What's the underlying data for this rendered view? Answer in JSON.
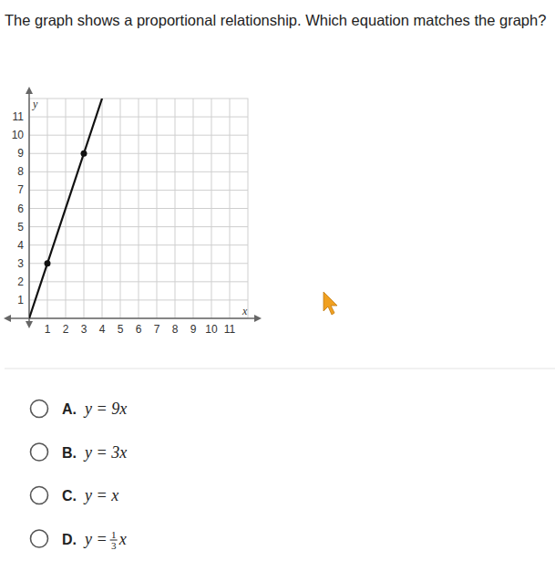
{
  "question": "The graph shows a proportional relationship. Which equation matches the graph?",
  "chart_data": {
    "type": "line",
    "x_label": "x",
    "y_label": "y",
    "xlim": [
      0,
      12
    ],
    "ylim": [
      0,
      12
    ],
    "xticks": [
      1,
      2,
      3,
      4,
      5,
      6,
      7,
      8,
      9,
      10,
      11
    ],
    "yticks": [
      1,
      2,
      3,
      4,
      5,
      6,
      7,
      8,
      9,
      10,
      11
    ],
    "grid": true,
    "series": [
      {
        "type": "line",
        "color": "#111111",
        "line_style": "solid",
        "x": [
          0,
          4
        ],
        "values": [
          0,
          12
        ]
      },
      {
        "type": "scatter",
        "color": "#111111",
        "marker": "circle",
        "x": [
          1,
          3
        ],
        "values": [
          3,
          9
        ]
      }
    ]
  },
  "choices": [
    {
      "letter": "A.",
      "equation": "y = 9x"
    },
    {
      "letter": "B.",
      "equation": "y = 3x"
    },
    {
      "letter": "C.",
      "equation": "y = x"
    },
    {
      "letter": "D.",
      "equation": "y =",
      "fraction": [
        "1",
        "3"
      ],
      "variable": "x"
    }
  ]
}
